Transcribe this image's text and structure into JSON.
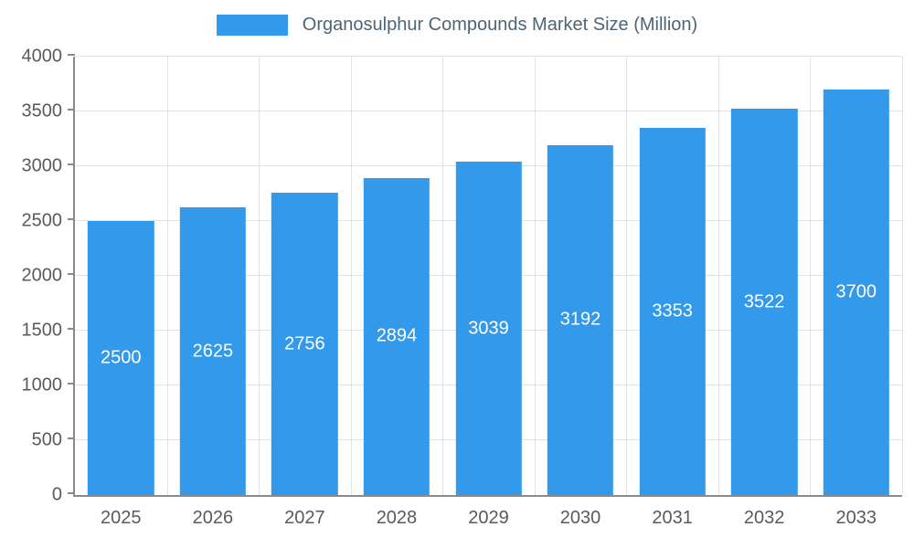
{
  "chart_data": {
    "type": "bar",
    "title": "Organosulphur Compounds Market Size (Million)",
    "categories": [
      "2025",
      "2026",
      "2027",
      "2028",
      "2029",
      "2030",
      "2031",
      "2032",
      "2033"
    ],
    "values": [
      2500,
      2625,
      2756,
      2894,
      3039,
      3192,
      3353,
      3522,
      3700
    ],
    "xlabel": "",
    "ylabel": "",
    "ylim": [
      0,
      4000
    ],
    "ytick_step": 500,
    "grid": true,
    "legend_position": "top-center",
    "bar_color": "#3399EB",
    "value_label_color": "#ffffff",
    "axis_color": "#8a8a8a",
    "grid_color": "#e2e2e2",
    "tick_label_color": "#5a5a5a",
    "title_color": "#4d6475"
  }
}
